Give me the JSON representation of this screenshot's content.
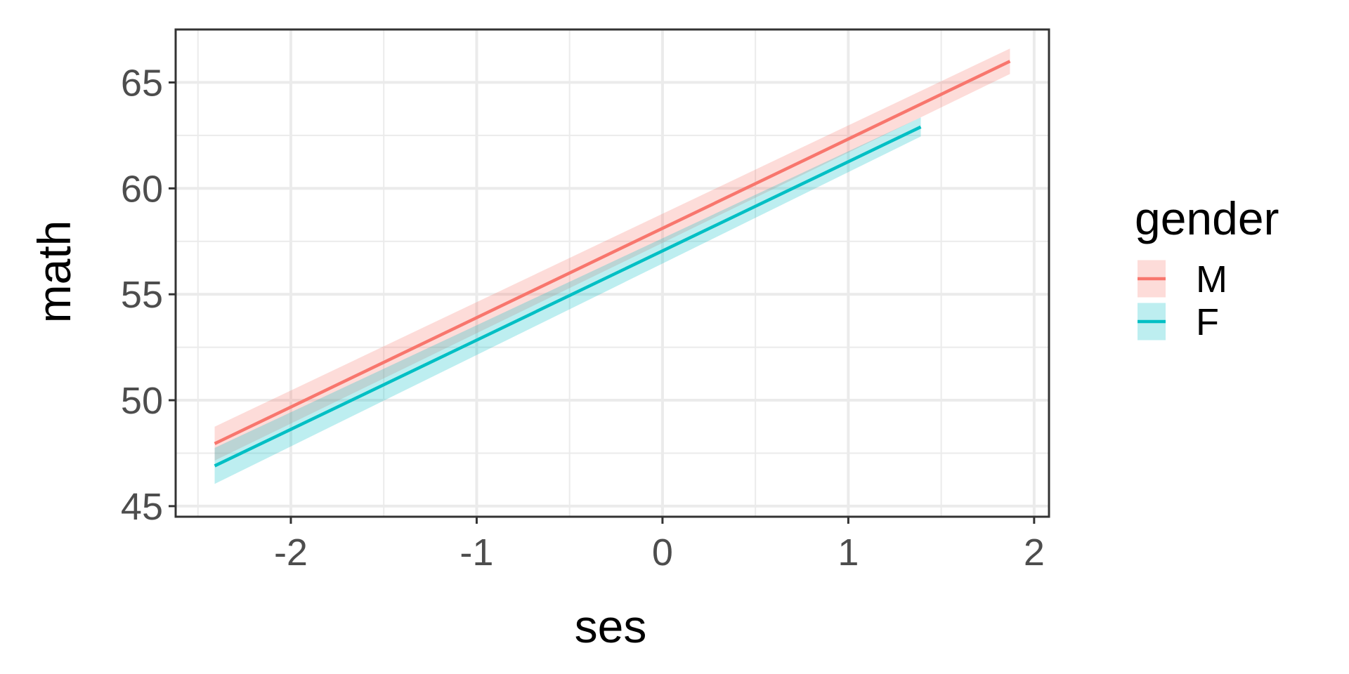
{
  "chart_data": {
    "type": "line",
    "xlabel": "ses",
    "ylabel": "math",
    "xlim": [
      -2.62,
      2.08
    ],
    "ylim": [
      44.5,
      67.5
    ],
    "x_ticks": [
      -2,
      -1,
      0,
      1,
      2
    ],
    "x_tick_labels": [
      "-2",
      "-1",
      "0",
      "1",
      "2"
    ],
    "y_ticks": [
      45,
      50,
      55,
      60,
      65
    ],
    "y_tick_labels": [
      "45",
      "50",
      "55",
      "60",
      "65"
    ],
    "grid": true,
    "legend": {
      "title": "gender",
      "position": "right"
    },
    "series": [
      {
        "name": "M",
        "color": "#F8766D",
        "x": [
          -2.41,
          1.87
        ],
        "y": [
          47.95,
          66.0
        ],
        "ribbon_lower": [
          47.15,
          65.4
        ],
        "ribbon_upper": [
          48.75,
          66.6
        ]
      },
      {
        "name": "F",
        "color": "#00BFC4",
        "x": [
          -2.41,
          1.39
        ],
        "y": [
          46.9,
          62.9
        ],
        "ribbon_lower": [
          46.05,
          62.45
        ],
        "ribbon_upper": [
          47.75,
          63.35
        ]
      }
    ]
  }
}
